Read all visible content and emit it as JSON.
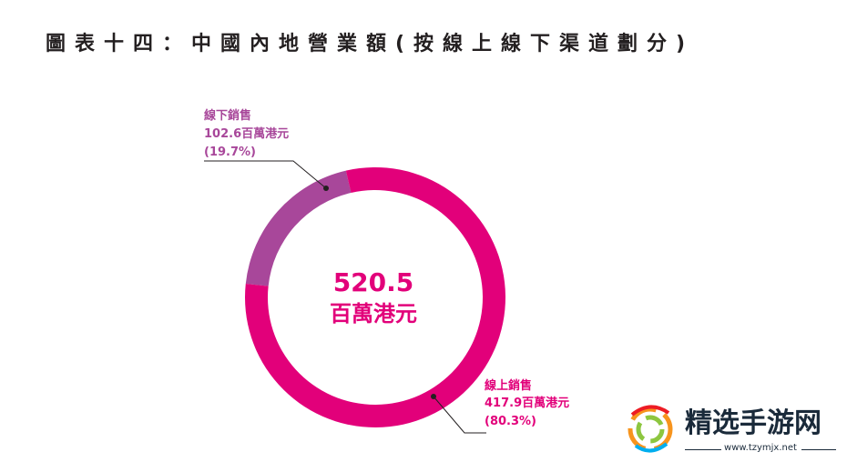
{
  "title": "圖表十四：中國內地營業額(按線上線下渠道劃分)",
  "chart_data": {
    "type": "pie",
    "style": "donut",
    "total": {
      "value": "520.5",
      "unit": "百萬港元"
    },
    "slices": [
      {
        "name": "線下銷售",
        "value": 102.6,
        "value_label": "102.6百萬港元",
        "percent": 19.7,
        "percent_label": "(19.7%)",
        "color": "#a8479a"
      },
      {
        "name": "線上銷售",
        "value": 417.9,
        "value_label": "417.9百萬港元",
        "percent": 80.3,
        "percent_label": "(80.3%)",
        "color": "#e2007a"
      }
    ]
  },
  "colors": {
    "title": "#231f20",
    "offline": "#a8479a",
    "online": "#e2007a"
  },
  "watermark": {
    "text": "精选手游网",
    "url": "www.tzymjx.net"
  }
}
